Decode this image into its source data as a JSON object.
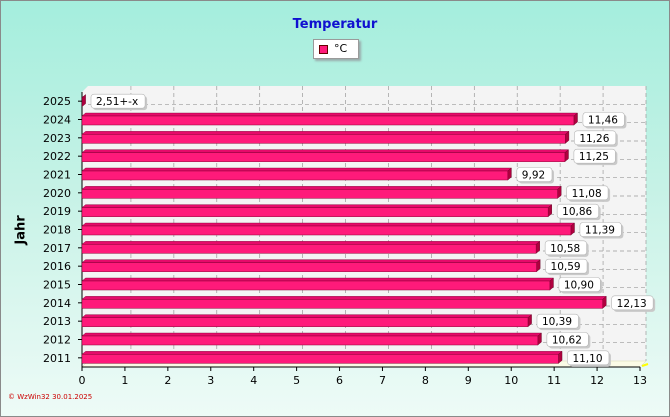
{
  "chart_data": {
    "type": "bar",
    "orientation": "horizontal",
    "title": "Temperatur",
    "ylabel": "Jahr",
    "legend": {
      "position": "top",
      "entries": [
        "°C"
      ]
    },
    "categories": [
      "2011",
      "2012",
      "2013",
      "2014",
      "2015",
      "2016",
      "2017",
      "2018",
      "2019",
      "2020",
      "2021",
      "2022",
      "2023",
      "2024",
      "2025"
    ],
    "series": [
      {
        "name": "°C",
        "values": [
          11.1,
          10.62,
          10.39,
          12.13,
          10.9,
          10.59,
          10.58,
          11.39,
          10.86,
          11.08,
          9.92,
          11.25,
          11.26,
          11.46,
          null
        ],
        "labels": [
          "11,10",
          "10,62",
          "10,39",
          "12,13",
          "10,90",
          "10,59",
          "10,58",
          "11,39",
          "10,86",
          "11,08",
          "9,92",
          "11,25",
          "11,26",
          "11,46",
          "2,51+-x"
        ]
      }
    ],
    "xlim": [
      0,
      13
    ],
    "xticks": [
      "0",
      "1",
      "2",
      "3",
      "4",
      "5",
      "6",
      "7",
      "8",
      "9",
      "10",
      "11",
      "12",
      "13"
    ],
    "grid": true,
    "colors": {
      "bar": "#ff1a7a",
      "bar_side": "#b0003f",
      "bar_top": "#e60a6a"
    }
  },
  "footer": "© WzWin32 30.01.2025"
}
